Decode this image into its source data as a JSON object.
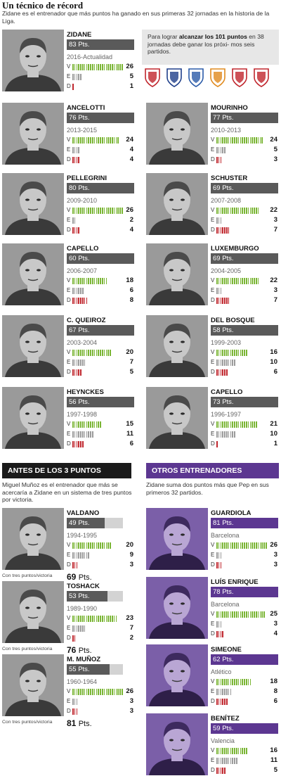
{
  "header": {
    "title": "Un técnico de récord",
    "intro": "Zidane es el entrenador que más puntos ha ganado en sus primeras 32 jornadas en la historia de la Liga."
  },
  "promo": {
    "text_pre": "Para lograr ",
    "text_bold": "alcanzar los 101 puntos",
    "text_post": " en 38 jornadas debe ganar los próxi- mos seis partidos.",
    "crests": [
      "sporting-gijon-crest",
      "fc-barcelona-crest",
      "deportivo-crest",
      "valencia-crest",
      "granada-crest",
      "sevilla-crest"
    ]
  },
  "labels": {
    "v": "V",
    "e": "E",
    "d": "D"
  },
  "colors": {
    "win": "#7ab534",
    "draw": "#9a9a9a",
    "loss": "#c0262d",
    "gray_bar": "#5a5a5a",
    "purple": "#5c3791"
  },
  "record_coaches": [
    {
      "name": "ZIDANE",
      "pts": "83 Pts.",
      "years": "2016-Actualidad",
      "v": 26,
      "e": 5,
      "d": 1
    },
    {
      "name": "ANCELOTTI",
      "pts": "76 Pts.",
      "years": "2013-2015",
      "v": 24,
      "e": 4,
      "d": 4
    },
    {
      "name": "MOURINHO",
      "pts": "77 Pts.",
      "years": "2010-2013",
      "v": 24,
      "e": 5,
      "d": 3
    },
    {
      "name": "PELLEGRINI",
      "pts": "80 Pts.",
      "years": "2009-2010",
      "v": 26,
      "e": 2,
      "d": 4
    },
    {
      "name": "SCHUSTER",
      "pts": "69 Pts.",
      "years": "2007-2008",
      "v": 22,
      "e": 3,
      "d": 7
    },
    {
      "name": "CAPELLO",
      "pts": "60 Pts.",
      "years": "2006-2007",
      "v": 18,
      "e": 6,
      "d": 8
    },
    {
      "name": "LUXEMBURGO",
      "pts": "69 Pts.",
      "years": "2004-2005",
      "v": 22,
      "e": 3,
      "d": 7
    },
    {
      "name": "C. QUEIROZ",
      "pts": "67 Pts.",
      "years": "2003-2004",
      "v": 20,
      "e": 7,
      "d": 5
    },
    {
      "name": "DEL BOSQUE",
      "pts": "58 Pts.",
      "years": "1999-2003",
      "v": 16,
      "e": 10,
      "d": 6
    },
    {
      "name": "HEYNCKES",
      "pts": "56 Pts.",
      "years": "1997-1998",
      "v": 15,
      "e": 11,
      "d": 6
    },
    {
      "name": "CAPELLO",
      "pts": "73 Pts.",
      "years": "1996-1997",
      "v": 21,
      "e": 10,
      "d": 1
    }
  ],
  "section_left": {
    "title": "ANTES DE LOS 3 PUNTOS",
    "text": "Miguel Muñoz es el entrenador que más se acercaría a Zidane en un sistema de tres puntos por victoria.",
    "coaches": [
      {
        "name": "VALDANO",
        "pts": "49 Pts.",
        "pts_fraction": 0.49,
        "years": "1994-1995",
        "v": 20,
        "e": 9,
        "d": 3,
        "caption": "Con tres puntos/victoria",
        "big_value": "69",
        "big_unit": "Pts."
      },
      {
        "name": "TOSHACK",
        "pts": "53 Pts.",
        "pts_fraction": 0.53,
        "years": "1989-1990",
        "v": 23,
        "e": 7,
        "d": 2,
        "caption": "Con tres puntos/victoria",
        "big_value": "76",
        "big_unit": "Pts."
      },
      {
        "name": "M. MUÑOZ",
        "pts": "55 Pts.",
        "pts_fraction": 0.55,
        "years": "1960-1964",
        "v": 26,
        "e": 3,
        "d": 3,
        "caption": "Con tres puntos/victoria",
        "big_value": "81",
        "big_unit": "Pts."
      }
    ]
  },
  "section_right": {
    "title": "OTROS ENTRENADORES",
    "text": "Zidane suma dos puntos más que Pep en sus primeros 32 partidos.",
    "coaches": [
      {
        "name": "GUARDIOLA",
        "pts": "81 Pts.",
        "years": "Barcelona",
        "v": 26,
        "e": 3,
        "d": 3
      },
      {
        "name": "LUÍS ENRIQUE",
        "pts": "78 Pts.",
        "years": "Barcelona",
        "v": 25,
        "e": 3,
        "d": 4
      },
      {
        "name": "SIMEONE",
        "pts": "62 Pts.",
        "years": "Atlético",
        "v": 18,
        "e": 8,
        "d": 6
      },
      {
        "name": "BENÍTEZ",
        "pts": "59 Pts.",
        "years": "Valencia",
        "v": 16,
        "e": 11,
        "d": 5
      }
    ]
  }
}
